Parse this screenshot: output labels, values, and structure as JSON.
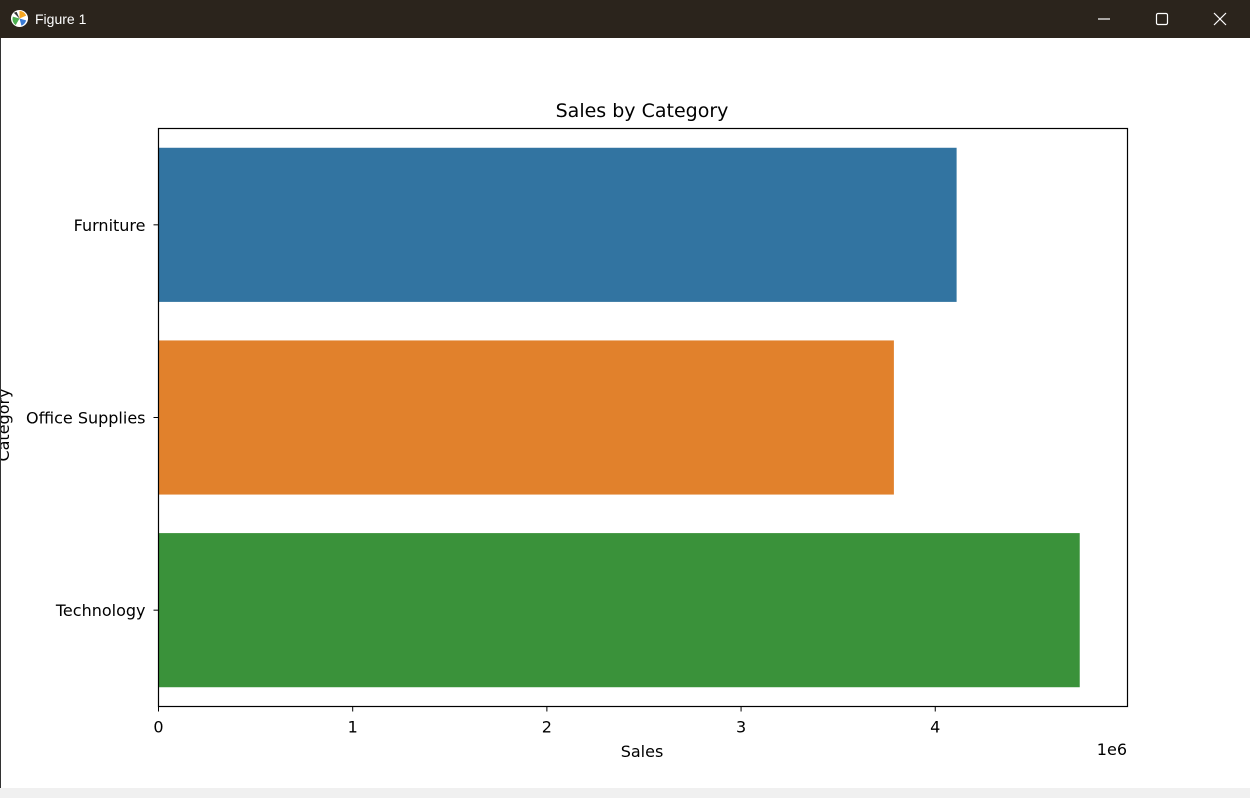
{
  "window": {
    "title": "Figure 1",
    "icon": "matplotlib-icon",
    "controls": [
      "minimize-icon",
      "maximize-icon",
      "close-icon"
    ],
    "titlebar_color": "#2b241c"
  },
  "chart_data": {
    "type": "bar",
    "orientation": "horizontal",
    "title": "Sales by Category",
    "xlabel": "Sales",
    "ylabel": "Category",
    "x_offset_label": "1e6",
    "categories": [
      "Furniture",
      "Office Supplies",
      "Technology"
    ],
    "values": [
      4110000,
      3787000,
      4744000
    ],
    "colors": [
      "#3274a1",
      "#e1812c",
      "#3a923a"
    ],
    "xlim": [
      0,
      4990000
    ],
    "xticks": [
      0,
      1000000,
      2000000,
      3000000,
      4000000
    ],
    "xtick_labels": [
      "0",
      "1",
      "2",
      "3",
      "4"
    ],
    "grid": false,
    "legend": "none"
  }
}
